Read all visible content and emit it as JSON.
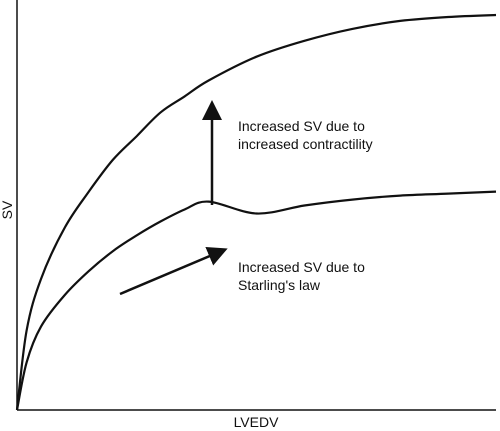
{
  "chart_data": {
    "type": "line",
    "title": "",
    "xlabel": "LVEDV",
    "ylabel": "SV",
    "grid": false,
    "legend": "none",
    "xlim": [
      0,
      100
    ],
    "ylim": [
      0,
      100
    ],
    "series": [
      {
        "x": [
          0,
          2,
          5,
          10,
          15,
          20,
          25,
          30,
          35,
          40,
          50,
          60,
          70,
          80,
          90,
          100
        ],
        "y": [
          0,
          20,
          33,
          46,
          55,
          63,
          69,
          75,
          79,
          83,
          89,
          93,
          96,
          98,
          99,
          99.5
        ]
      },
      {
        "x": [
          0,
          2,
          5,
          10,
          15,
          20,
          25,
          30,
          35,
          40,
          50,
          60,
          70,
          80,
          90,
          100
        ],
        "y": [
          0,
          12,
          21,
          29,
          35,
          40,
          44,
          47.5,
          50.5,
          52.5,
          49.5,
          51.5,
          53,
          54,
          54.5,
          55
        ]
      }
    ],
    "annotations": [
      {
        "text_lines": [
          "Increased SV due to",
          "increased contractility"
        ]
      },
      {
        "text_lines": [
          "Increased SV due to",
          "Starling's law"
        ]
      }
    ]
  },
  "colors": {
    "line": "#111111",
    "background": "#ffffff"
  }
}
